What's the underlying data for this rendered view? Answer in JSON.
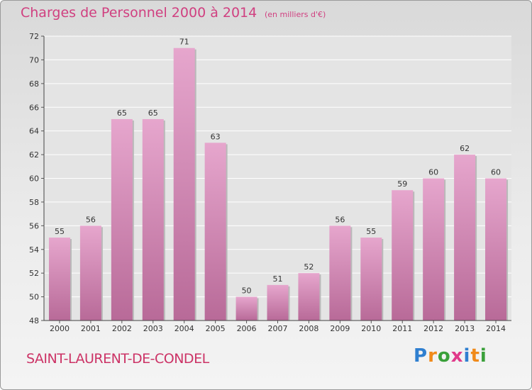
{
  "chart_data": {
    "type": "bar",
    "title": "Charges de Personnel 2000 à 2014",
    "subtitle": "(en milliers d'€)",
    "categories": [
      "2000",
      "2001",
      "2002",
      "2003",
      "2004",
      "2005",
      "2006",
      "2007",
      "2008",
      "2009",
      "2010",
      "2011",
      "2012",
      "2013",
      "2014"
    ],
    "values": [
      55,
      56,
      65,
      65,
      71,
      63,
      50,
      51,
      52,
      56,
      55,
      59,
      60,
      62,
      60
    ],
    "ylim": [
      48,
      72
    ],
    "yticks": [
      48,
      50,
      52,
      54,
      56,
      58,
      60,
      62,
      64,
      66,
      68,
      70,
      72
    ],
    "grid": true,
    "bar_color_top": "#e6a6cd",
    "bar_color_bottom": "#b86a98"
  },
  "footer": {
    "commune": "SAINT-LAURENT-DE-CONDEL",
    "logo_letters": [
      "P",
      "r",
      "o",
      "x",
      "i",
      "t",
      "i"
    ],
    "logo_colors": [
      "#2f7fd0",
      "#f08a1a",
      "#3aa03a",
      "#e03a8a",
      "#2f7fd0",
      "#f08a1a",
      "#3aa03a"
    ]
  }
}
